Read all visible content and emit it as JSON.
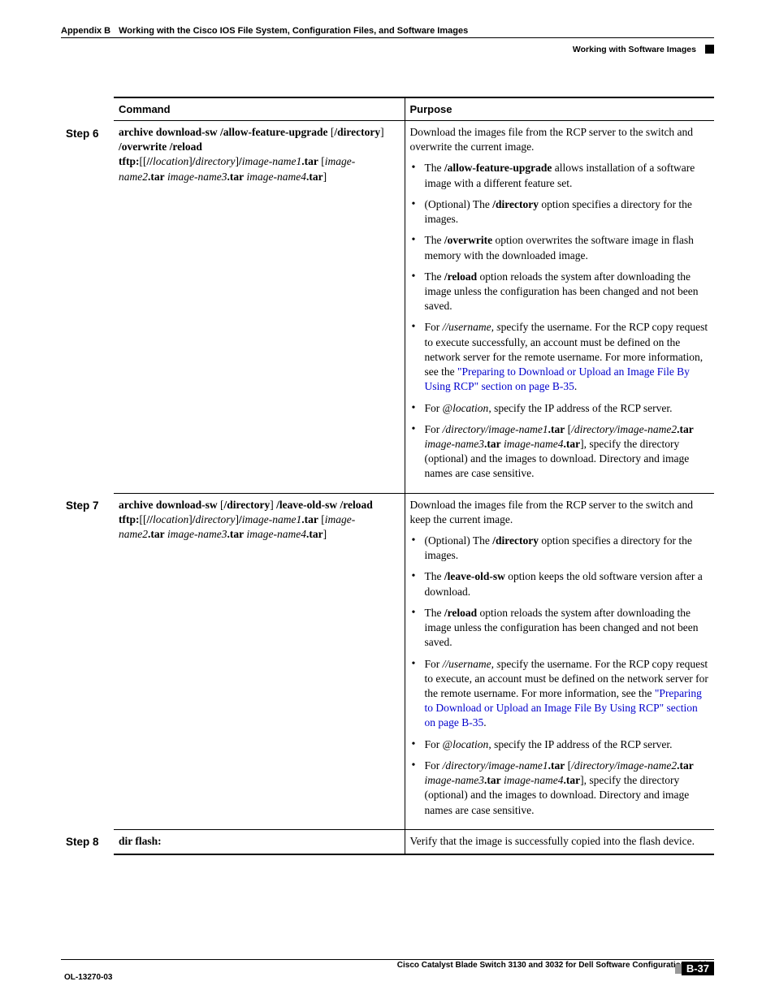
{
  "header": {
    "appendix_label": "Appendix B",
    "appendix_title": "Working with the Cisco IOS File System, Configuration Files, and Software Images",
    "section": "Working with Software Images"
  },
  "table": {
    "headers": {
      "command": "Command",
      "purpose": "Purpose"
    },
    "rows": [
      {
        "step": "Step 6",
        "command_html": "<b>archive download-sw /allow-feature-upgrade</b> [<b>/directory</b>] <b>/overwrite /reload</b><br><b>tftp:</b>[[<b>//</b><i>location</i>]<b>/</b><i>directory</i>]<b>/</b><i>image-name1</i><b>.tar</b> [<i>image-name2</i><b>.tar</b> <i>image-name3</i><b>.tar</b> <i>image-name4</i><b>.tar</b>]",
        "purpose_intro": "Download the images file from the RCP server to the switch and overwrite the current image.",
        "bullets": [
          "The <b>/allow-feature-upgrade</b> allows installation of a software image with a different feature set.",
          "(Optional) The <b>/directory</b> option specifies a directory for the images.",
          "The <b>/overwrite</b> option overwrites the software image in flash memory with the downloaded image.",
          "The <b>/reload</b> option reloads the system after downloading the image unless the configuration has been changed and not been saved.",
          "For <i>//username, s</i>pecify the username. For the RCP copy request to execute successfully, an account must be defined on the network server for the remote username. For more information, see the <span class=\"link-text\">\"Preparing to Download or Upload an Image File By Using RCP\" section on page B-35</span>.",
          "For @<i>location</i>, specify the IP address of the RCP server.",
          "For <i>/directory/image-name1</i><b>.tar</b> [<i>/directory/image-name2</i><b>.tar</b> <i>image-name3</i><b>.tar</b> <i>image-name4</i><b>.tar</b>], specify the directory (optional) and the images to download. Directory and image names are case sensitive."
        ]
      },
      {
        "step": "Step 7",
        "command_html": "<b>archive download-sw</b> [<b>/directory</b>] <b>/leave-old-sw /reload</b><br><b>tftp:</b>[[<b>//</b><i>location</i>]<b>/</b><i>directory</i>]<b>/</b><i>image-name1</i><b>.tar</b> [<i>image-name2</i><b>.tar</b> <i>image-name3</i><b>.tar</b> <i>image-name4</i><b>.tar</b>]",
        "purpose_intro": "Download the images file from the RCP server to the switch and keep the current image.",
        "bullets": [
          "(Optional) The <b>/directory</b> option specifies a directory for the images.",
          "The <b>/leave-old-sw</b> option keeps the old software version after a download.",
          "The <b>/reload</b> option reloads the system after downloading the image unless the configuration has been changed and not been saved.",
          "For <i>//username, s</i>pecify the username. For the RCP copy request to execute, an account must be defined on the network server for the remote username. For more information, see the <span class=\"link-text\">\"Preparing to Download or Upload an Image File By Using RCP\" section on page B-35</span>.",
          "For @<i>location</i>, specify the IP address of the RCP server.",
          "For <i>/directory/image-name1</i><b>.tar</b> [<i>/directory/image-name2</i><b>.tar</b> <i>image-name3</i><b>.tar</b> <i>image-name4</i><b>.tar</b>], specify the directory (optional) and the images to download. Directory and image names are case sensitive."
        ]
      },
      {
        "step": "Step 8",
        "command_html": "<b>dir flash:</b>",
        "purpose_intro": "Verify that the image is successfully copied into the flash device.",
        "bullets": []
      }
    ]
  },
  "footer": {
    "guide_title": "Cisco Catalyst Blade Switch 3130 and 3032 for Dell Software Configuration Guide",
    "ol_number": "OL-13270-03",
    "page_number": "B-37"
  }
}
